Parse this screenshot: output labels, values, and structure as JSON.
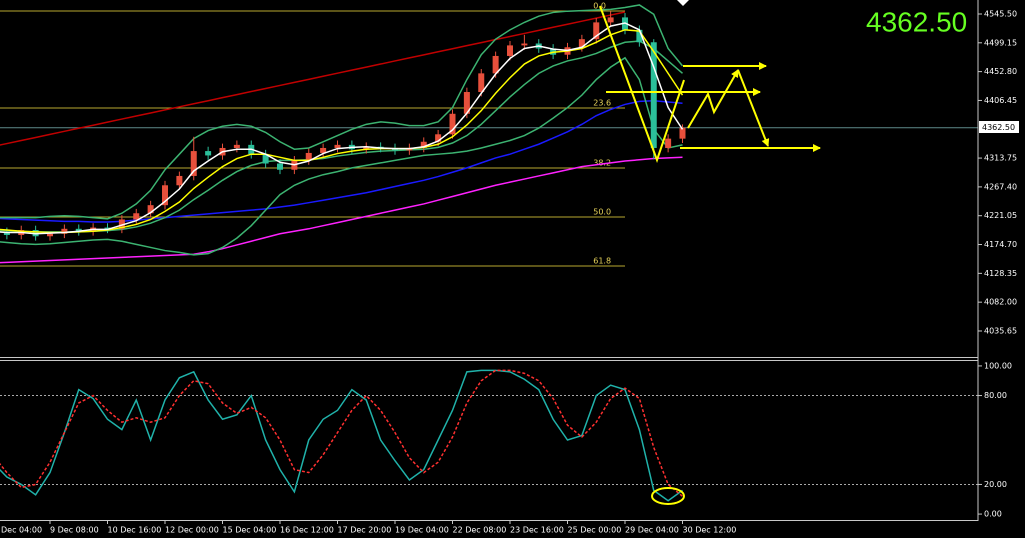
{
  "chart_data": [
    {
      "type": "candlestick",
      "categories": [
        "Dec 04:00",
        null,
        null,
        null,
        "9 Dec 08:00",
        null,
        null,
        null,
        "10 Dec 16:00",
        null,
        null,
        null,
        "12 Dec 00:00",
        null,
        null,
        null,
        "15 Dec 04:00",
        null,
        null,
        null,
        "16 Dec 12:00",
        null,
        null,
        null,
        "17 Dec 20:00",
        null,
        null,
        null,
        "19 Dec 04:00",
        null,
        null,
        null,
        "22 Dec 08:00",
        null,
        null,
        null,
        "23 Dec 16:00",
        null,
        null,
        null,
        "25 Dec 00:00",
        null,
        null,
        null,
        "29 Dec 04:00",
        null,
        null,
        null,
        "30 Dec 12:00"
      ],
      "open": [
        4200,
        4195,
        4190,
        4198,
        4188,
        4192,
        4200,
        4196,
        4202,
        4200,
        4215,
        4225,
        4238,
        4270,
        4285,
        4325,
        4318,
        4330,
        4335,
        4320,
        4305,
        4295,
        4310,
        4322,
        4330,
        4335,
        4328,
        4332,
        4330,
        4326,
        4330,
        4340,
        4352,
        4385,
        4420,
        4450,
        4478,
        4495,
        4498,
        4490,
        4480,
        4492,
        4505,
        4532,
        4540,
        4520,
        4500,
        4330,
        4345
      ],
      "high": [
        4207,
        4202,
        4205,
        4205,
        4195,
        4207,
        4207,
        4209,
        4209,
        4222,
        4232,
        4245,
        4277,
        4292,
        4348,
        4332,
        4337,
        4342,
        4342,
        4327,
        4312,
        4317,
        4329,
        4337,
        4342,
        4342,
        4339,
        4339,
        4337,
        4337,
        4347,
        4359,
        4392,
        4427,
        4457,
        4485,
        4502,
        4512,
        4505,
        4497,
        4499,
        4512,
        4539,
        4550,
        4547,
        4527,
        4505,
        4352,
        4368
      ],
      "low": [
        4188,
        4183,
        4183,
        4181,
        4181,
        4185,
        4189,
        4189,
        4193,
        4193,
        4208,
        4218,
        4231,
        4263,
        4278,
        4311,
        4311,
        4323,
        4313,
        4298,
        4288,
        4288,
        4303,
        4315,
        4323,
        4321,
        4321,
        4323,
        4319,
        4319,
        4323,
        4333,
        4345,
        4378,
        4413,
        4443,
        4471,
        4488,
        4483,
        4473,
        4473,
        4485,
        4498,
        4525,
        4513,
        4493,
        4312,
        4323,
        4338
      ],
      "close": [
        4195,
        4190,
        4198,
        4188,
        4192,
        4200,
        4196,
        4202,
        4200,
        4215,
        4225,
        4238,
        4270,
        4285,
        4325,
        4318,
        4330,
        4335,
        4320,
        4305,
        4295,
        4310,
        4322,
        4330,
        4335,
        4328,
        4332,
        4330,
        4326,
        4330,
        4340,
        4352,
        4385,
        4420,
        4450,
        4478,
        4495,
        4498,
        4490,
        4480,
        4492,
        4505,
        4532,
        4540,
        4520,
        4500,
        4330,
        4345,
        4362.5
      ],
      "up_color": "#e8503c",
      "down_color": "#2bbf9a",
      "series": [
        {
          "color": "#c00000",
          "values": [
            4332.2,
            4337.1,
            4342.0,
            4346.9,
            4351.9,
            4356.8,
            4361.7,
            4366.6,
            4371.6,
            4376.5,
            4381.4,
            4386.3,
            4391.2,
            4396.2,
            4401.1,
            4406.0,
            4410.9,
            4415.8,
            4420.8,
            4425.7,
            4430.6,
            4435.5,
            4440.4,
            4445.4,
            4450.3,
            4455.2,
            4460.1,
            4465.0,
            4470.0,
            4474.9,
            4479.8,
            4484.7,
            4489.6,
            4494.6,
            4499.5,
            4504.4,
            4509.3,
            4514.2,
            4519.2,
            4524.1,
            4529.0,
            4533.9,
            4538.8,
            4543.8,
            4548.7,
            null,
            null,
            null,
            null
          ]
        },
        {
          "color": "#ff22ff",
          "values": [
            4145,
            4146,
            4147,
            4148,
            4149,
            4150,
            4151,
            4152,
            4153,
            4154,
            4155,
            4156,
            4157,
            4158,
            4159,
            4163,
            4168,
            4174,
            4180,
            4186,
            4192,
            4196,
            4200,
            4205,
            4210,
            4215,
            4220,
            4225,
            4230,
            4235,
            4240,
            4246,
            4252,
            4258,
            4264,
            4270,
            4275,
            4280,
            4285,
            4290,
            4295,
            4300,
            4303,
            4306,
            4309,
            4311,
            4313,
            4314,
            4315
          ]
        },
        {
          "color": "#1a1aff",
          "values": [
            4217,
            4216,
            4215,
            4214,
            4213,
            4212,
            4212,
            4211,
            4211,
            4212,
            4214,
            4216,
            4218,
            4220,
            4222,
            4224,
            4226,
            4228,
            4230,
            4232,
            4235,
            4238,
            4242,
            4246,
            4250,
            4254,
            4258,
            4263,
            4268,
            4273,
            4278,
            4284,
            4291,
            4298,
            4306,
            4314,
            4320,
            4328,
            4336,
            4346,
            4356,
            4368,
            4382,
            4392,
            4400,
            4405,
            4406,
            4404,
            4402
          ]
        },
        {
          "color": "#3cb371",
          "values": [
            4218,
            4218,
            4218,
            4218,
            4220,
            4221,
            4220,
            4218,
            4216,
            4225,
            4240,
            4262,
            4295,
            4320,
            4345,
            4358,
            4365,
            4368,
            4365,
            4355,
            4340,
            4328,
            4330,
            4340,
            4350,
            4360,
            4368,
            4372,
            4370,
            4366,
            4366,
            4372,
            4395,
            4440,
            4480,
            4505,
            4520,
            4532,
            4542,
            4548,
            4550,
            4551,
            4552,
            4553,
            4556,
            4560,
            4545,
            4490,
            4462
          ]
        },
        {
          "color": "#3cb371",
          "values": [
            4198,
            4197,
            4196,
            4195,
            4195,
            4195,
            4195,
            4196,
            4197,
            4199,
            4203,
            4209,
            4218,
            4230,
            4247,
            4262,
            4278,
            4292,
            4302,
            4308,
            4310,
            4310,
            4311,
            4313,
            4317,
            4320,
            4323,
            4325,
            4326,
            4327,
            4328,
            4331,
            4338,
            4350,
            4368,
            4390,
            4412,
            4432,
            4450,
            4462,
            4470,
            4475,
            4482,
            4492,
            4500,
            4502,
            4490,
            4470,
            4450
          ]
        },
        {
          "color": "#3cb371",
          "values": [
            4180,
            4178,
            4176,
            4175,
            4176,
            4178,
            4180,
            4182,
            4183,
            4180,
            4175,
            4170,
            4165,
            4162,
            4158,
            4160,
            4170,
            4185,
            4205,
            4230,
            4255,
            4270,
            4280,
            4287,
            4292,
            4298,
            4302,
            4306,
            4310,
            4314,
            4318,
            4320,
            4322,
            4325,
            4330,
            4336,
            4342,
            4350,
            4362,
            4378,
            4395,
            4415,
            4440,
            4460,
            4475,
            4440,
            4360,
            4330,
            4335
          ]
        },
        {
          "color": "#ffff00",
          "values": [
            4200,
            4198,
            4196,
            4195,
            4194,
            4194,
            4195,
            4196,
            4198,
            4202,
            4207,
            4215,
            4228,
            4243,
            4265,
            4283,
            4300,
            4313,
            4320,
            4320,
            4315,
            4310,
            4310,
            4315,
            4321,
            4325,
            4328,
            4329,
            4329,
            4329,
            4331,
            4336,
            4348,
            4367,
            4390,
            4418,
            4443,
            4465,
            4478,
            4484,
            4486,
            4490,
            4500,
            4512,
            4520,
            4518,
            4485,
            4450,
            4415
          ]
        },
        {
          "color": "#ffffff",
          "values": [
            4196,
            4194,
            4194,
            4192,
            4193,
            4194,
            4196,
            4199,
            4199,
            4206,
            4213,
            4226,
            4244,
            4264,
            4293,
            4309,
            4324,
            4328,
            4328,
            4320,
            4307,
            4303,
            4309,
            4321,
            4329,
            4331,
            4332,
            4330,
            4329,
            4329,
            4332,
            4341,
            4359,
            4386,
            4418,
            4449,
            4474,
            4490,
            4494,
            4489,
            4487,
            4492,
            4510,
            4526,
            4531,
            4520,
            4460,
            4395,
            4360
          ]
        }
      ],
      "levels": [
        {
          "value": 4550.3,
          "label": "0.0"
        },
        {
          "value": 4394.3,
          "label": "23.6"
        },
        {
          "value": 4297.8,
          "label": "38.2"
        },
        {
          "value": 4219.0,
          "label": "50.0"
        },
        {
          "value": 4140.2,
          "label": "61.8"
        }
      ],
      "level_color": "#b8a830",
      "last_price": {
        "value": 4362.5,
        "label": "4362.50"
      },
      "ylim": [
        3993.8,
        4568.0
      ],
      "yticks": [
        {
          "value": 4545.5,
          "label": "4545.50"
        },
        4499.15,
        {
          "value": 4452.8,
          "label": "4452.80"
        },
        4406.45,
        4313.75,
        {
          "value": 4267.4,
          "label": "4267.40"
        },
        4221.05,
        {
          "value": 4174.7,
          "label": "4174.70"
        },
        4128.35,
        {
          "value": 4082,
          "label": "4082.00"
        },
        4035.65
      ]
    },
    {
      "type": "line",
      "series": [
        {
          "color": "#20b2aa",
          "dash": false,
          "values": [
            35,
            25,
            20,
            13,
            28,
            55,
            84,
            78,
            64,
            57,
            77,
            50,
            77,
            92,
            96,
            77,
            64,
            67,
            80,
            50,
            30,
            15,
            50,
            64,
            70,
            84,
            77,
            50,
            36,
            23,
            30,
            50,
            70,
            96,
            97,
            97,
            96,
            91,
            84,
            64,
            50,
            53,
            80,
            87,
            84,
            57,
            16,
            9,
            16
          ]
        },
        {
          "color": "#ff3030",
          "dash": true,
          "values": [
            40,
            28,
            18,
            20,
            35,
            55,
            75,
            80,
            70,
            62,
            65,
            62,
            65,
            80,
            90,
            88,
            75,
            68,
            72,
            65,
            50,
            30,
            28,
            40,
            55,
            70,
            80,
            70,
            55,
            38,
            28,
            35,
            52,
            75,
            90,
            97,
            97,
            95,
            90,
            78,
            60,
            52,
            62,
            78,
            85,
            78,
            45,
            20,
            12
          ]
        }
      ],
      "levels": [
        80,
        20
      ],
      "ylim": [
        -4,
        104
      ],
      "yticks": [
        {
          "value": 100,
          "label": "100.00"
        },
        {
          "value": 80,
          "label": "80.00"
        },
        {
          "value": 20,
          "label": "20.00"
        },
        {
          "value": 0,
          "label": "0.00"
        }
      ]
    }
  ]
}
